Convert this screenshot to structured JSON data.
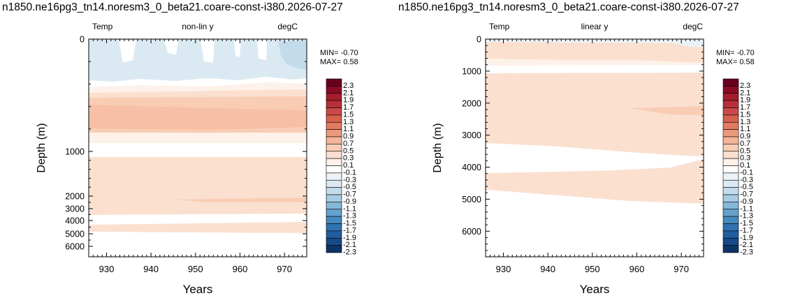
{
  "panels": [
    {
      "title": "n1850.ne16pg3_tn14.noresm3_0_beta21.coare-const-i380.2026-07-27",
      "left_label": "Temp",
      "center_label": "non-lin y",
      "right_label": "degC",
      "stats": {
        "min": "MIN= -0.70",
        "max": "MAX=  0.58"
      },
      "xlabel": "Years",
      "ylabel": "Depth (m)"
    },
    {
      "title": "n1850.ne16pg3_tn14.noresm3_0_beta21.coare-const-i380.2026-07-27",
      "left_label": "Temp",
      "center_label": "linear y",
      "right_label": "degC",
      "stats": {
        "min": "MIN= -0.70",
        "max": "MAX=  0.58"
      },
      "xlabel": "Years",
      "ylabel": "Depth (m)"
    }
  ],
  "colorbar": {
    "labels": [
      "2.3",
      "2.1",
      "1.9",
      "1.7",
      "1.5",
      "1.3",
      "1.1",
      "0.9",
      "0.7",
      "0.5",
      "0.3",
      "0.1",
      "-0.1",
      "-0.3",
      "-0.5",
      "-0.7",
      "-0.9",
      "-1.1",
      "-1.3",
      "-1.5",
      "-1.7",
      "-1.9",
      "-2.1",
      "-2.3"
    ],
    "colors": [
      "#67001f",
      "#8a0b25",
      "#a51d2d",
      "#b8303a",
      "#c94a49",
      "#d6604d",
      "#e27b62",
      "#ec9a7e",
      "#f4b59a",
      "#f8cdb4",
      "#fbe0d0",
      "#fdf1e9",
      "#ffffff",
      "#ecf3f8",
      "#dbe9f2",
      "#c3dcec",
      "#a6cbe2",
      "#85b7d7",
      "#64a1cb",
      "#468bbf",
      "#3072b0",
      "#225d9d",
      "#174a86",
      "#0c3466"
    ]
  },
  "chart_data": [
    {
      "type": "heatmap",
      "title": "n1850.ne16pg3_tn14.noresm3_0_beta21.coare-const-i380.2026-07-27",
      "xlabel": "Years",
      "ylabel": "Depth (m)",
      "x_range": [
        926,
        975
      ],
      "x_ticks": [
        930,
        940,
        950,
        960,
        970
      ],
      "y_scale": "non-linear",
      "y_ticks": [
        0,
        1000,
        2000,
        3000,
        4000,
        5000,
        6000
      ],
      "y_range": [
        0,
        6500
      ],
      "min": -0.7,
      "max": 0.58,
      "bands": [
        {
          "depth_top": 0,
          "depth_bottom": 60,
          "value": -0.2
        },
        {
          "depth_top": 60,
          "depth_bottom": 100,
          "value": 0.0
        },
        {
          "depth_top": 100,
          "depth_bottom": 170,
          "value": 0.2
        },
        {
          "depth_top": 170,
          "depth_bottom": 200,
          "value": 0.35
        },
        {
          "depth_top": 200,
          "depth_bottom": 600,
          "value": 0.4
        },
        {
          "depth_top": 600,
          "depth_bottom": 900,
          "value": 0.2
        },
        {
          "depth_top": 900,
          "depth_bottom": 1100,
          "value": 0.0
        },
        {
          "depth_top": 1100,
          "depth_bottom": 4300,
          "value": 0.2
        },
        {
          "depth_top": 4300,
          "depth_bottom": 4800,
          "value": 0.0
        },
        {
          "depth_top": 4800,
          "depth_bottom": 5500,
          "value": 0.2
        },
        {
          "depth_top": 5500,
          "depth_bottom": 6500,
          "value": 0.0
        }
      ]
    },
    {
      "type": "heatmap",
      "title": "n1850.ne16pg3_tn14.noresm3_0_beta21.coare-const-i380.2026-07-27",
      "xlabel": "Years",
      "ylabel": "Depth (m)",
      "x_range": [
        926,
        975
      ],
      "x_ticks": [
        930,
        940,
        950,
        960,
        970
      ],
      "y_scale": "linear",
      "y_ticks": [
        0,
        1000,
        2000,
        3000,
        4000,
        5000,
        6000
      ],
      "y_range": [
        0,
        6800
      ],
      "min": -0.7,
      "max": 0.58,
      "bands": [
        {
          "depth_top": 0,
          "depth_bottom": 60,
          "value": -0.1
        },
        {
          "depth_top": 60,
          "depth_bottom": 650,
          "value": 0.35
        },
        {
          "depth_top": 650,
          "depth_bottom": 800,
          "value": 0.2
        },
        {
          "depth_top": 800,
          "depth_bottom": 1050,
          "value": 0.0
        },
        {
          "depth_top": 1050,
          "depth_bottom": 3200,
          "value": 0.2
        },
        {
          "depth_top": 3200,
          "depth_bottom": 4200,
          "value": 0.0
        },
        {
          "depth_top": 4200,
          "depth_bottom": 4900,
          "value": 0.2
        },
        {
          "depth_top": 4900,
          "depth_bottom": 6800,
          "value": 0.0
        }
      ]
    }
  ]
}
